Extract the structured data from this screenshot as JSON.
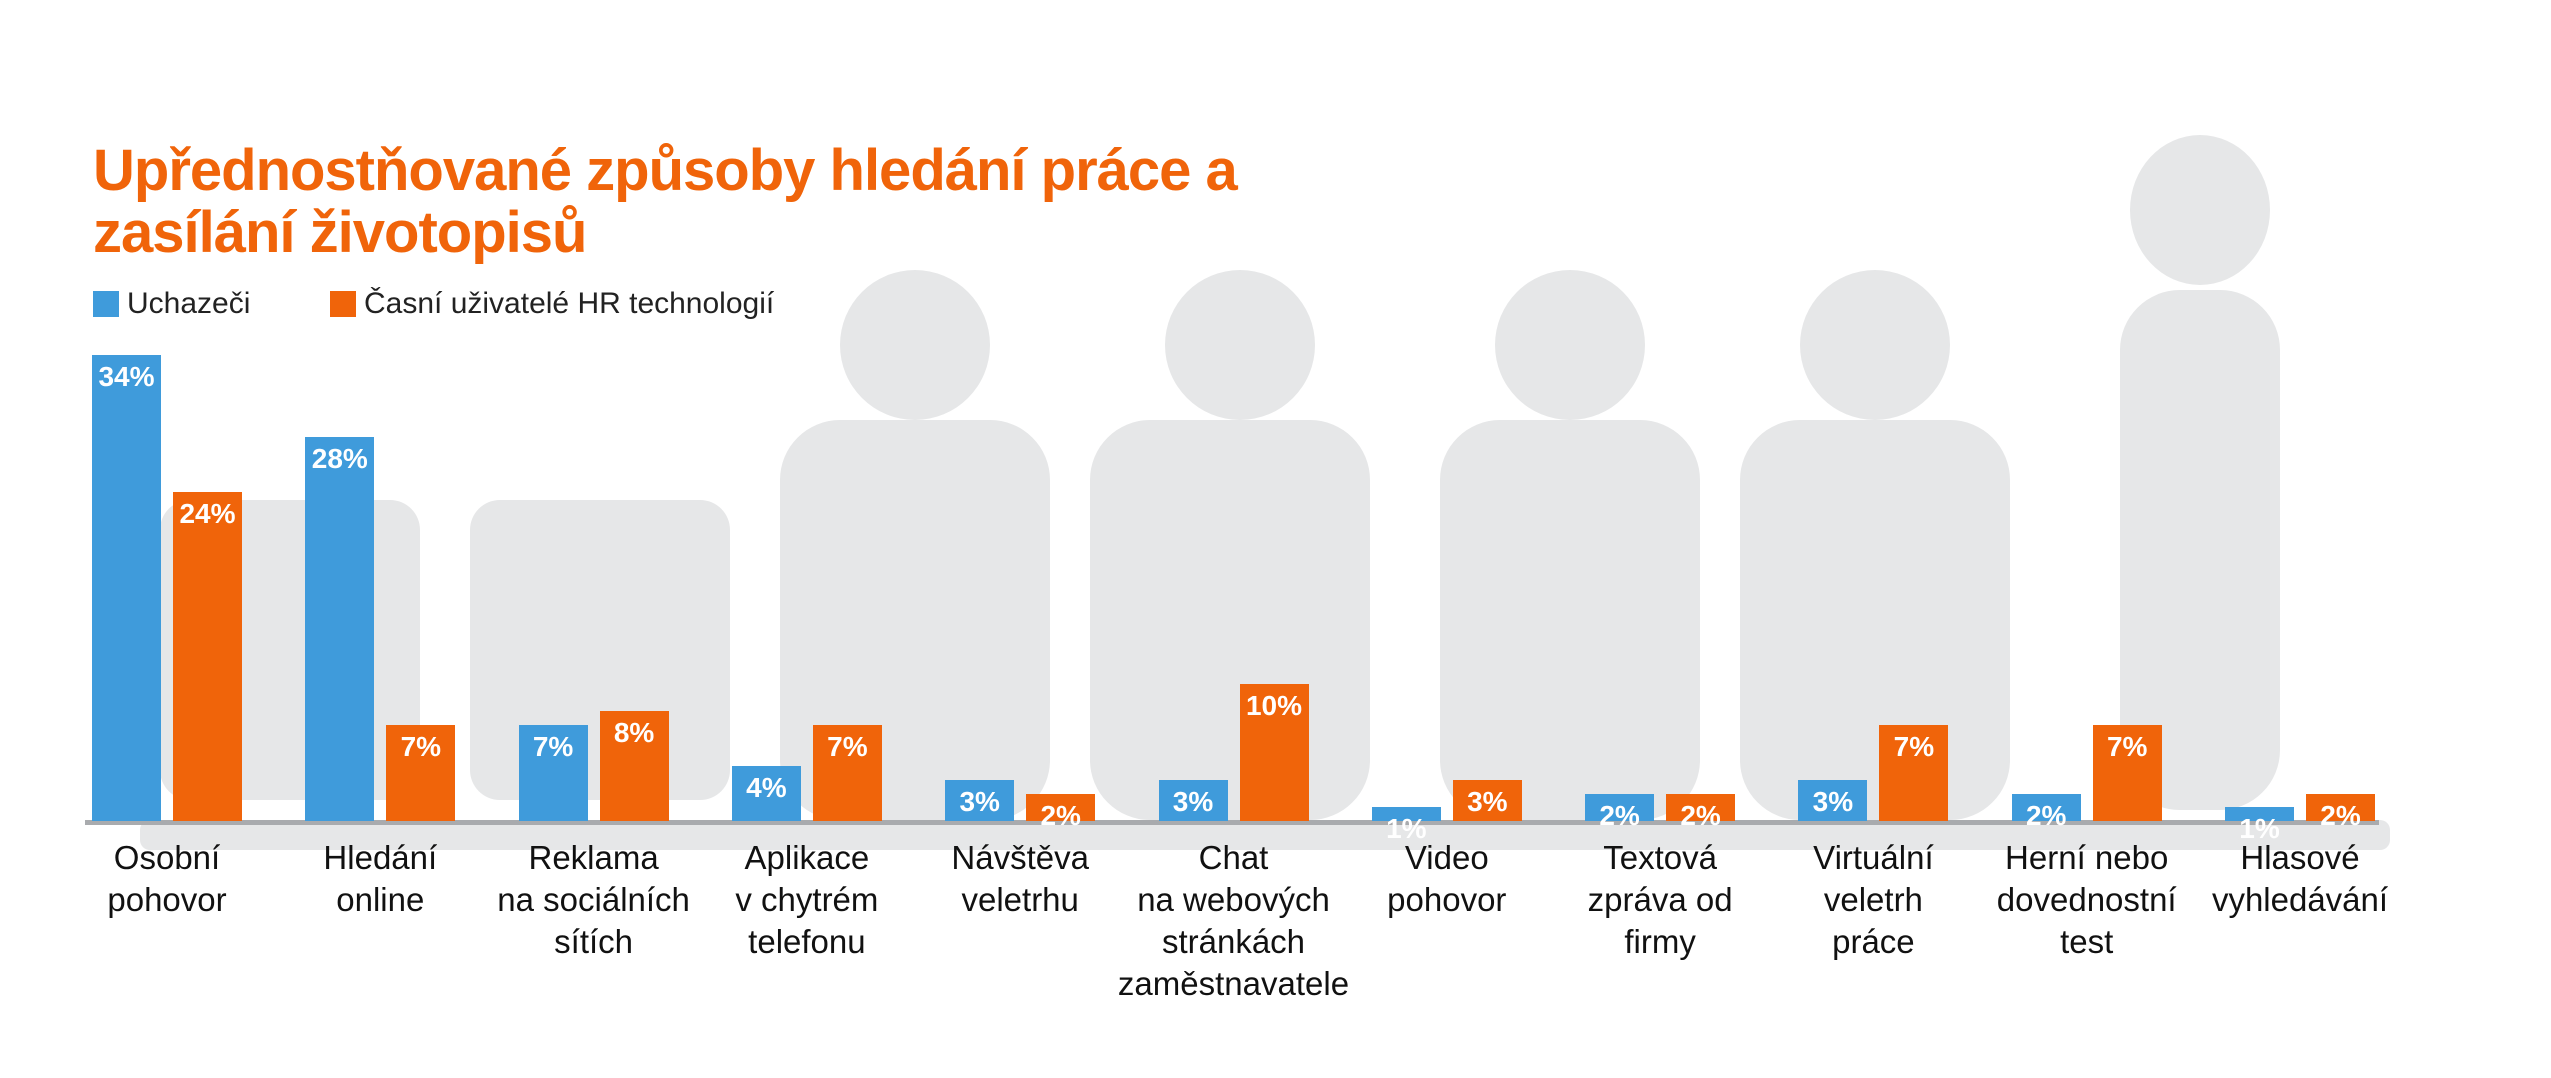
{
  "chart_data": {
    "type": "bar",
    "title": "Upřednostňované způsoby hledání práce a zasílání životopisů",
    "categories": [
      "Osobní\npohovor",
      "Hledání\nonline",
      "Reklama\nna sociálních\nsítích",
      "Aplikace\nv chytrém\ntelefonu",
      "Návštěva\nveletrhu",
      "Chat\nna webových\nstránkách\nzaměstnavatele",
      "Video\npohovor",
      "Textová\nzpráva od\nfirmy",
      "Virtuální\nveletrh\npráce",
      "Herní nebo\ndovednostní\ntest",
      "Hlasové\nvyhledávání"
    ],
    "series": [
      {
        "name": "Uchazeči",
        "color": "#3f9bdb",
        "values": [
          34,
          28,
          7,
          4,
          3,
          3,
          1,
          2,
          3,
          2,
          1
        ],
        "value_labels": [
          "34%",
          "28%",
          "7%",
          "4%",
          "3%",
          "3%",
          "1%",
          "2%",
          "3%",
          "2%",
          "1%"
        ]
      },
      {
        "name": "Časní uživatelé HR technologií",
        "color": "#f0640a",
        "values": [
          24,
          7,
          8,
          7,
          2,
          10,
          3,
          2,
          7,
          7,
          2
        ],
        "value_labels": [
          "24%",
          "7%",
          "8%",
          "7%",
          "2%",
          "10%",
          "3%",
          "2%",
          "7%",
          "7%",
          "2%"
        ]
      }
    ]
  }
}
